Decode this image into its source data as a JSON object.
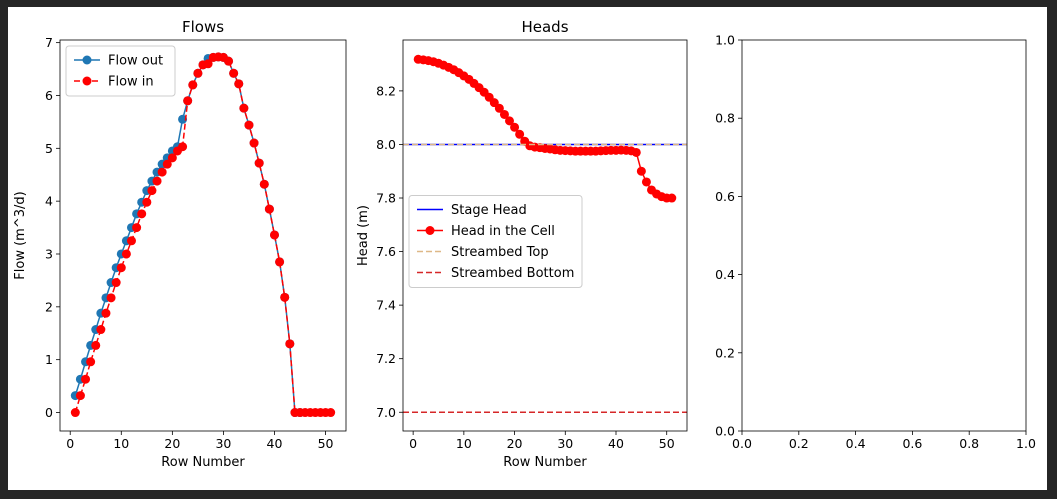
{
  "chart_data": [
    {
      "type": "line",
      "title": "Flows",
      "xlabel": "Row Number",
      "ylabel": "Flow (m^3/d)",
      "xlim": [
        -2,
        54
      ],
      "ylim": [
        -0.35,
        7.05
      ],
      "xticks": [
        0,
        10,
        20,
        30,
        40,
        50
      ],
      "yticks": [
        0,
        1,
        2,
        3,
        4,
        5,
        6,
        7
      ],
      "grid": false,
      "legend_position": "upper-left",
      "series": [
        {
          "name": "Flow out",
          "color": "#1f77b4",
          "linestyle": "solid",
          "marker": "circle",
          "x": [
            1,
            2,
            3,
            4,
            5,
            6,
            7,
            8,
            9,
            10,
            11,
            12,
            13,
            14,
            15,
            16,
            17,
            18,
            19,
            20,
            21,
            22,
            23,
            24,
            25,
            26,
            27,
            28,
            29,
            30,
            31,
            32,
            33,
            34,
            35,
            36,
            37,
            38,
            39,
            40,
            41,
            42,
            43,
            44,
            45
          ],
          "values": [
            0.32,
            0.63,
            0.96,
            1.27,
            1.57,
            1.88,
            2.17,
            2.46,
            2.74,
            3.0,
            3.25,
            3.5,
            3.76,
            3.98,
            4.2,
            4.38,
            4.55,
            4.7,
            4.82,
            4.95,
            5.03,
            5.55,
            5.9,
            6.2,
            6.42,
            6.58,
            6.7,
            6.72,
            6.73,
            6.72,
            6.65,
            6.42,
            6.22,
            5.76,
            5.44,
            5.1,
            4.72,
            4.32,
            3.85,
            3.36,
            2.85,
            2.18,
            1.3,
            0.0,
            0.0
          ]
        },
        {
          "name": "Flow in",
          "color": "#ff0000",
          "linestyle": "dashed",
          "marker": "circle",
          "x": [
            1,
            2,
            3,
            4,
            5,
            6,
            7,
            8,
            9,
            10,
            11,
            12,
            13,
            14,
            15,
            16,
            17,
            18,
            19,
            20,
            21,
            22,
            23,
            24,
            25,
            26,
            27,
            28,
            29,
            30,
            31,
            32,
            33,
            34,
            35,
            36,
            37,
            38,
            39,
            40,
            41,
            42,
            43,
            44,
            45,
            46,
            47,
            48,
            49,
            50,
            51
          ],
          "values": [
            0.0,
            0.32,
            0.63,
            0.96,
            1.27,
            1.57,
            1.88,
            2.17,
            2.46,
            2.74,
            3.0,
            3.25,
            3.5,
            3.76,
            3.98,
            4.2,
            4.38,
            4.55,
            4.7,
            4.82,
            4.95,
            5.03,
            5.9,
            6.2,
            6.42,
            6.58,
            6.6,
            6.72,
            6.73,
            6.72,
            6.65,
            6.42,
            6.22,
            5.76,
            5.44,
            5.1,
            4.72,
            4.32,
            3.85,
            3.36,
            2.85,
            2.18,
            1.3,
            0.0,
            0.0,
            0.0,
            0.0,
            0.0,
            0.0,
            0.0,
            0.0
          ]
        }
      ]
    },
    {
      "type": "line",
      "title": "Heads",
      "xlabel": "Row Number",
      "ylabel": "Head (m)",
      "xlim": [
        -2,
        54
      ],
      "ylim": [
        6.93,
        8.39
      ],
      "xticks": [
        0,
        10,
        20,
        30,
        40,
        50
      ],
      "yticks": [
        7.0,
        7.2,
        7.4,
        7.6,
        7.8,
        8.0,
        8.2
      ],
      "grid": false,
      "legend_position": "center-left",
      "series": [
        {
          "name": "Stage Head",
          "color": "#0000ff",
          "linestyle": "solid",
          "marker": "none",
          "hline": 8.0
        },
        {
          "name": "Head in the Cell",
          "color": "#ff0000",
          "linestyle": "solid",
          "marker": "circle",
          "x": [
            1,
            2,
            3,
            4,
            5,
            6,
            7,
            8,
            9,
            10,
            11,
            12,
            13,
            14,
            15,
            16,
            17,
            18,
            19,
            20,
            21,
            22,
            23,
            24,
            25,
            26,
            27,
            28,
            29,
            30,
            31,
            32,
            33,
            34,
            35,
            36,
            37,
            38,
            39,
            40,
            41,
            42,
            43,
            44,
            45,
            46,
            47,
            48,
            49,
            50,
            51
          ],
          "values": [
            8.318,
            8.316,
            8.313,
            8.309,
            8.303,
            8.296,
            8.288,
            8.279,
            8.268,
            8.256,
            8.243,
            8.228,
            8.212,
            8.195,
            8.176,
            8.156,
            8.135,
            8.112,
            8.088,
            8.064,
            8.038,
            8.012,
            7.995,
            7.99,
            7.988,
            7.985,
            7.983,
            7.98,
            7.978,
            7.977,
            7.976,
            7.975,
            7.975,
            7.975,
            7.975,
            7.975,
            7.976,
            7.977,
            7.978,
            7.978,
            7.979,
            7.978,
            7.976,
            7.97,
            7.9,
            7.86,
            7.83,
            7.815,
            7.805,
            7.8,
            7.8
          ]
        },
        {
          "name": "Streambed Top",
          "color": "#deb887",
          "linestyle": "dashed",
          "marker": "none",
          "hline": 8.0
        },
        {
          "name": "Streambed Bottom",
          "color": "#d62728",
          "linestyle": "dashed",
          "marker": "none",
          "hline": 7.0
        }
      ]
    },
    {
      "type": "line",
      "title": "",
      "xlabel": "",
      "ylabel": "",
      "xlim": [
        0,
        1
      ],
      "ylim": [
        0,
        1
      ],
      "xticks": [
        0.0,
        0.2,
        0.4,
        0.6,
        0.8,
        1.0
      ],
      "yticks": [
        0.0,
        0.2,
        0.4,
        0.6,
        0.8,
        1.0
      ],
      "grid": false,
      "series": []
    }
  ]
}
